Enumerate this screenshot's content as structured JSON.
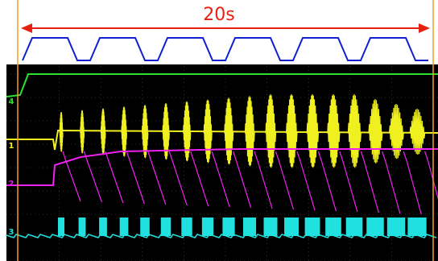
{
  "annotation": {
    "label": "20s"
  },
  "channels": [
    {
      "label": "4"
    },
    {
      "label": "1"
    },
    {
      "label": "2"
    },
    {
      "label": "3"
    }
  ]
}
